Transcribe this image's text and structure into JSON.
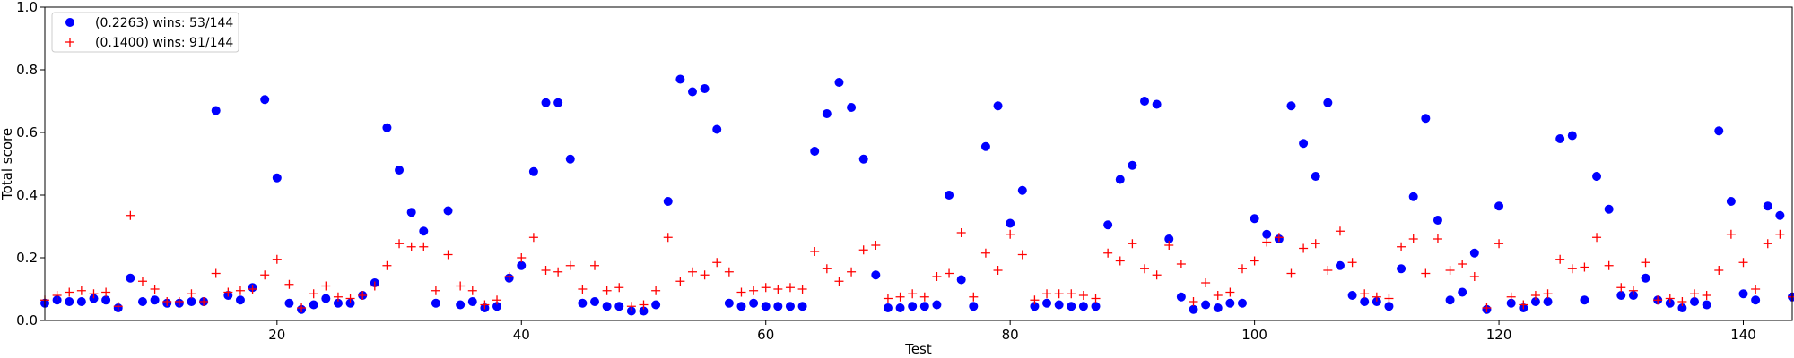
{
  "chart_data": {
    "type": "scatter",
    "xlabel": "Test",
    "ylabel": "Total score",
    "xlim": [
      1,
      144
    ],
    "ylim": [
      0,
      1.0
    ],
    "xticks": [
      20,
      40,
      60,
      80,
      100,
      120,
      140
    ],
    "xtick_labels": [
      "20",
      "40",
      "60",
      "80",
      "100",
      "120",
      "140"
    ],
    "yticks": [
      0,
      0.2,
      0.4,
      0.6,
      0.8,
      1.0
    ],
    "ytick_labels": [
      "0.0",
      "0.2",
      "0.4",
      "0.6",
      "0.8",
      "1.0"
    ],
    "grid": false,
    "legend_position": "top-left",
    "series": [
      {
        "name": "(0.2263) wins: 53/144",
        "marker": "circle",
        "color": "#0000ff",
        "values": [
          0.055,
          0.065,
          0.06,
          0.06,
          0.07,
          0.065,
          0.04,
          0.135,
          0.06,
          0.065,
          0.055,
          0.055,
          0.06,
          0.06,
          0.67,
          0.08,
          0.065,
          0.105,
          0.705,
          0.455,
          0.055,
          0.035,
          0.05,
          0.07,
          0.055,
          0.055,
          0.08,
          0.12,
          0.615,
          0.48,
          0.345,
          0.285,
          0.055,
          0.35,
          0.05,
          0.06,
          0.04,
          0.045,
          0.135,
          0.175,
          0.475,
          0.695,
          0.695,
          0.515,
          0.055,
          0.06,
          0.045,
          0.045,
          0.03,
          0.03,
          0.05,
          0.38,
          0.77,
          0.73,
          0.74,
          0.61,
          0.055,
          0.045,
          0.055,
          0.045,
          0.045,
          0.045,
          0.045,
          0.54,
          0.66,
          0.76,
          0.68,
          0.515,
          0.145,
          0.04,
          0.04,
          0.045,
          0.045,
          0.05,
          0.4,
          0.13,
          0.045,
          0.555,
          0.685,
          0.31,
          0.415,
          0.045,
          0.055,
          0.05,
          0.045,
          0.045,
          0.045,
          0.305,
          0.45,
          0.495,
          0.7,
          0.69,
          0.26,
          0.075,
          0.035,
          0.05,
          0.04,
          0.055,
          0.055,
          0.325,
          0.275,
          0.26,
          0.685,
          0.565,
          0.46,
          0.695,
          0.175,
          0.08,
          0.06,
          0.06,
          0.045,
          0.165,
          0.395,
          0.645,
          0.32,
          0.065,
          0.09,
          0.215,
          0.035,
          0.365,
          0.055,
          0.04,
          0.06,
          0.06,
          0.58,
          0.59,
          0.065,
          0.46,
          0.355,
          0.08,
          0.08,
          0.135,
          0.065,
          0.055,
          0.04,
          0.06,
          0.05,
          0.605,
          0.38,
          0.085,
          0.065,
          0.365,
          0.335,
          0.075
        ]
      },
      {
        "name": "(0.1400) wins: 91/144",
        "marker": "plus",
        "color": "#ff0000",
        "values": [
          0.065,
          0.08,
          0.09,
          0.095,
          0.085,
          0.09,
          0.045,
          0.335,
          0.125,
          0.1,
          0.06,
          0.06,
          0.085,
          0.06,
          0.15,
          0.09,
          0.095,
          0.1,
          0.145,
          0.195,
          0.115,
          0.04,
          0.085,
          0.11,
          0.075,
          0.07,
          0.08,
          0.11,
          0.175,
          0.245,
          0.235,
          0.235,
          0.095,
          0.21,
          0.11,
          0.095,
          0.05,
          0.065,
          0.14,
          0.2,
          0.265,
          0.16,
          0.155,
          0.175,
          0.1,
          0.175,
          0.095,
          0.105,
          0.045,
          0.05,
          0.095,
          0.265,
          0.125,
          0.155,
          0.145,
          0.185,
          0.155,
          0.09,
          0.095,
          0.105,
          0.1,
          0.105,
          0.1,
          0.22,
          0.165,
          0.125,
          0.155,
          0.225,
          0.24,
          0.07,
          0.075,
          0.085,
          0.075,
          0.14,
          0.15,
          0.28,
          0.075,
          0.215,
          0.16,
          0.275,
          0.21,
          0.065,
          0.085,
          0.085,
          0.085,
          0.08,
          0.07,
          0.215,
          0.19,
          0.245,
          0.165,
          0.145,
          0.24,
          0.18,
          0.06,
          0.12,
          0.08,
          0.09,
          0.165,
          0.19,
          0.25,
          0.265,
          0.15,
          0.23,
          0.245,
          0.16,
          0.285,
          0.185,
          0.085,
          0.075,
          0.07,
          0.235,
          0.26,
          0.15,
          0.26,
          0.16,
          0.18,
          0.14,
          0.04,
          0.245,
          0.075,
          0.05,
          0.08,
          0.085,
          0.195,
          0.165,
          0.17,
          0.265,
          0.175,
          0.105,
          0.095,
          0.185,
          0.065,
          0.07,
          0.06,
          0.085,
          0.08,
          0.16,
          0.275,
          0.185,
          0.1,
          0.245,
          0.275,
          0.075
        ]
      }
    ]
  }
}
